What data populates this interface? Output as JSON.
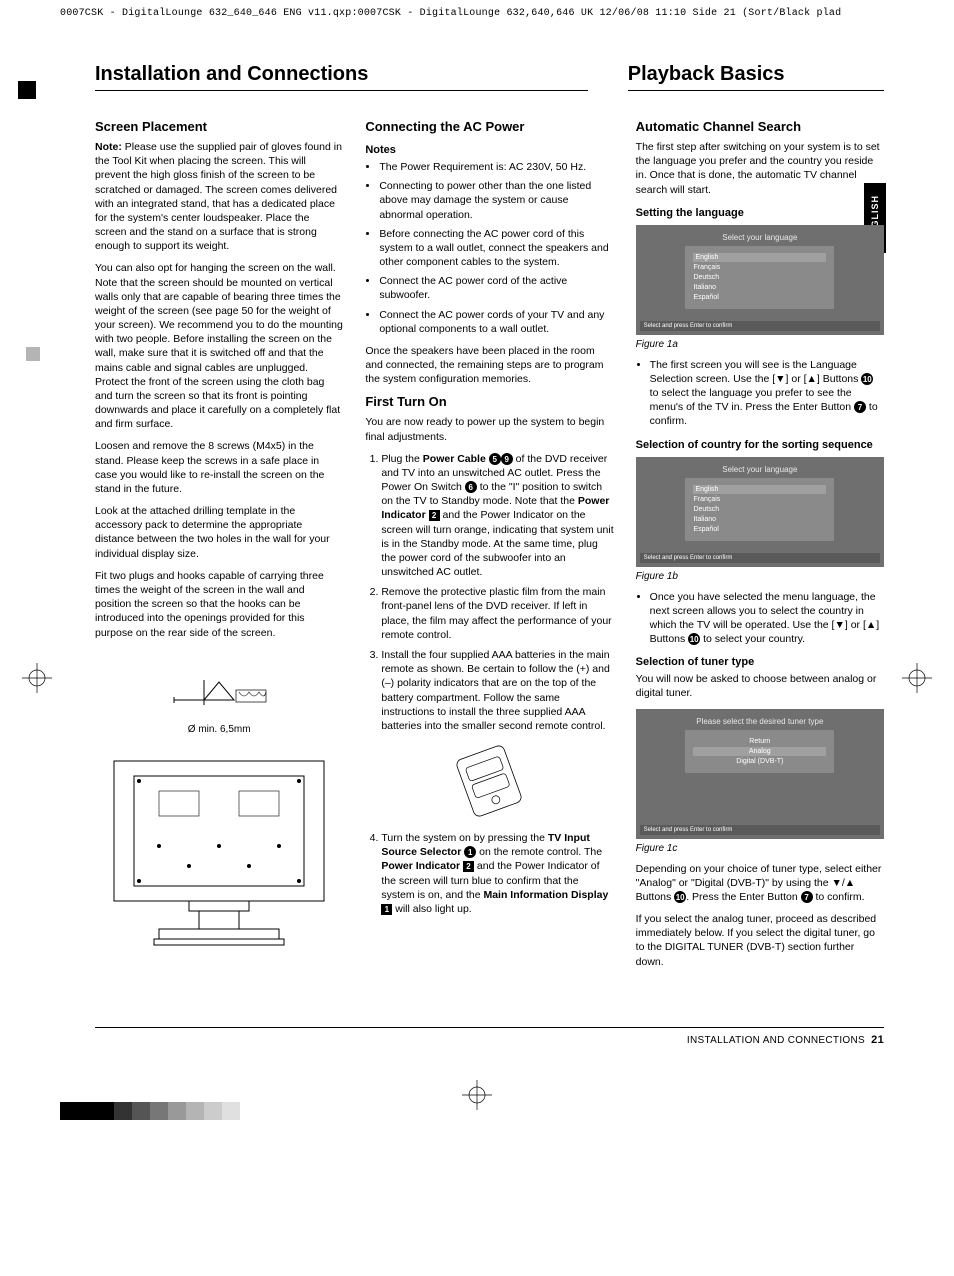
{
  "slugline": "0007CSK - DigitalLounge 632_640_646 ENG v11.qxp:0007CSK - DigitalLounge 632,640,646 UK  12/06/08  11:10  Side 21   (Sort/Black plad",
  "heading_left": "Installation and Connections",
  "heading_right": "Playback Basics",
  "side_tab": "ENGLISH",
  "col1": {
    "h_screen": "Screen Placement",
    "p_note": "Note: Please use the supplied pair of gloves found in the Tool Kit when placing the screen. This will prevent the high gloss finish of the screen to be scratched or damaged. The screen comes delivered with an integrated stand, that has a dedicated place for the system's center loudspeaker. Place the screen and the stand on a surface that is strong enough to support its weight.",
    "p_wall": "You can also opt for hanging the screen on the wall. Note that the screen should be mounted on vertical walls only that are capable of bearing three times the weight of the screen (see page 50 for the weight of your screen). We recommend you to do the mounting with two people. Before installing the screen on the wall, make sure that it is switched off and that the mains cable and signal cables are unplugged. Protect the front of the screen using the cloth bag and turn the screen so that its front is pointing downwards and place it carefully on a completely flat and firm surface.",
    "p_loosen": "Loosen and remove the 8 screws (M4x5) in the stand. Please keep the screws in a safe place in case you would like to re-install the screen on the stand in the future.",
    "p_template": "Look at the attached drilling template in the accessory pack to determine the appropriate distance between the two holes in the wall for your individual display size.",
    "p_plugs": "Fit two plugs and hooks capable of carrying three times the weight of the screen in the wall and position the screen so that the hooks can be introduced into the openings provided for this purpose on the rear side of the screen.",
    "drill_cap": "Ø min. 6,5mm"
  },
  "col2": {
    "h_ac": "Connecting the AC Power",
    "h_notes": "Notes",
    "li_ac1": "The Power Requirement is: AC 230V, 50 Hz.",
    "li_ac2": "Connecting to power other than the one listed above may damage the system or cause abnormal operation.",
    "li_ac3": "Before connecting the AC power cord of this system to a wall outlet, connect the speakers and other component cables to the system.",
    "li_ac4": "Connect the AC power cord of the active subwoofer.",
    "li_ac5": "Connect the AC power cords of your TV and any optional components to a wall outlet.",
    "p_once": "Once the speakers have been placed in the room and connected, the remaining steps are to program the system configuration memories.",
    "h_first": "First Turn On",
    "p_ready": "You are now ready to power up the system to begin final adjustments.",
    "li_step1": "Plug the Power Cable of the DVD receiver and TV into an unswitched AC outlet. Press the Power On Switch to the \"I\" position to switch on the TV to Standby mode. Note that the Power Indicator and the Power Indicator on the screen will turn orange, indicating that system unit is in the Standby mode. At the same time, plug the power cord of the subwoofer into an unswitched AC outlet.",
    "li_step2": "Remove the protective plastic film from the main front-panel lens of the DVD receiver. If left in place, the film may affect the performance of your remote control.",
    "li_step3": "Install the four supplied AAA batteries in the main remote as shown. Be certain to follow the (+) and (–) polarity indicators that are on the top of the battery compartment. Follow the same instructions to install the three supplied AAA batteries into the smaller second remote control.",
    "li_step4": "Turn the system on by pressing the TV Input Source Selector on the remote control. The Power Indicator and the Power Indicator of the screen will turn blue to confirm that the system is on, and the Main Information Display will also light up."
  },
  "col3": {
    "h_auto": "Automatic Channel Search",
    "p_first": "The first step after switching on your system is to set the language you prefer and the country you reside in. Once that is done, the automatic TV channel search will start.",
    "h_setlang": "Setting the language",
    "fig1a_title": "Select your language",
    "fig1a_langs": [
      "English",
      "Français",
      "Deutsch",
      "Italiano",
      "Español"
    ],
    "fig_foot": "Select and press Enter to confirm",
    "cap1a": "Figure 1a",
    "li_lang": "The first screen you will see is the Language Selection screen. Use the [▼] or [▲] Buttons to select the language you prefer to see the menu's of the TV in. Press the Enter Button to confirm.",
    "h_country": "Selection of country for the sorting sequence",
    "cap1b": "Figure 1b",
    "li_country": "Once you have selected the menu language, the next screen allows you to select the country in which the TV will be operated. Use the [▼] or [▲] Buttons to select your country.",
    "h_tuner": "Selection of tuner type",
    "p_tuner": "You will now be asked to choose between analog or digital tuner.",
    "fig1c_title": "Please select the desired tuner type",
    "fig1c_opts": [
      "Return",
      "Analog",
      "Digital (DVB-T)"
    ],
    "cap1c": "Figure 1c",
    "p_depend": "Depending on your choice of tuner type, select either \"Analog\" or \"Digital (DVB-T)\" by using the ▼/▲ Buttons. Press the Enter Button to confirm.",
    "p_ifanalog": "If you select the analog tuner, proceed as described immediately below. If you select the digital tuner, go to the DIGITAL TUNER (DVB-T) section further down."
  },
  "footer": {
    "text": "INSTALLATION AND CONNECTIONS",
    "page": "21"
  },
  "bottom_colors": [
    "#000000",
    "#000000",
    "#000000",
    "#333333",
    "#555555",
    "#777777",
    "#999999",
    "#b4b4b4",
    "#cccccc",
    "#e0e0e0"
  ]
}
